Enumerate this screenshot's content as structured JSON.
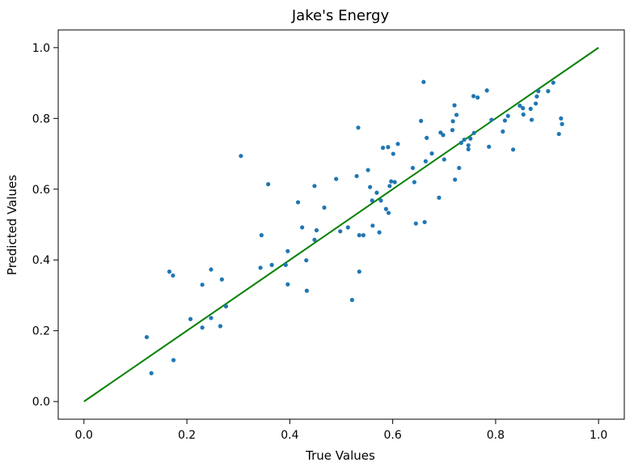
{
  "chart_data": {
    "type": "scatter",
    "title": "Jake's Energy",
    "xlabel": "True Values",
    "ylabel": "Predicted Values",
    "xlim": [
      -0.05,
      1.05
    ],
    "ylim": [
      -0.05,
      1.05
    ],
    "xticks": [
      0.0,
      0.2,
      0.4,
      0.6,
      0.8,
      1.0
    ],
    "yticks": [
      0.0,
      0.2,
      0.4,
      0.6,
      0.8,
      1.0
    ],
    "xtick_labels": [
      "0.0",
      "0.2",
      "0.4",
      "0.6",
      "0.8",
      "1.0"
    ],
    "ytick_labels": [
      "0.0",
      "0.2",
      "0.4",
      "0.6",
      "0.8",
      "1.0"
    ],
    "grid": false,
    "point_color": "#1f77b4",
    "reference_line": {
      "color": "#008000",
      "from": [
        0.0,
        0.0
      ],
      "to": [
        1.0,
        1.0
      ]
    },
    "points": [
      [
        0.122,
        0.182
      ],
      [
        0.131,
        0.08
      ],
      [
        0.166,
        0.367
      ],
      [
        0.173,
        0.356
      ],
      [
        0.174,
        0.117
      ],
      [
        0.207,
        0.233
      ],
      [
        0.23,
        0.209
      ],
      [
        0.23,
        0.33
      ],
      [
        0.247,
        0.373
      ],
      [
        0.247,
        0.236
      ],
      [
        0.265,
        0.213
      ],
      [
        0.268,
        0.345
      ],
      [
        0.276,
        0.269
      ],
      [
        0.305,
        0.694
      ],
      [
        0.343,
        0.378
      ],
      [
        0.345,
        0.47
      ],
      [
        0.358,
        0.614
      ],
      [
        0.365,
        0.386
      ],
      [
        0.392,
        0.386
      ],
      [
        0.396,
        0.425
      ],
      [
        0.396,
        0.331
      ],
      [
        0.416,
        0.563
      ],
      [
        0.424,
        0.492
      ],
      [
        0.432,
        0.399
      ],
      [
        0.433,
        0.313
      ],
      [
        0.448,
        0.609
      ],
      [
        0.448,
        0.457
      ],
      [
        0.452,
        0.484
      ],
      [
        0.467,
        0.548
      ],
      [
        0.49,
        0.629
      ],
      [
        0.498,
        0.481
      ],
      [
        0.513,
        0.492
      ],
      [
        0.521,
        0.287
      ],
      [
        0.53,
        0.637
      ],
      [
        0.533,
        0.774
      ],
      [
        0.535,
        0.47
      ],
      [
        0.535,
        0.367
      ],
      [
        0.543,
        0.47
      ],
      [
        0.552,
        0.654
      ],
      [
        0.556,
        0.606
      ],
      [
        0.56,
        0.568
      ],
      [
        0.561,
        0.497
      ],
      [
        0.569,
        0.59
      ],
      [
        0.574,
        0.478
      ],
      [
        0.577,
        0.568
      ],
      [
        0.581,
        0.717
      ],
      [
        0.587,
        0.544
      ],
      [
        0.591,
        0.719
      ],
      [
        0.592,
        0.533
      ],
      [
        0.594,
        0.609
      ],
      [
        0.597,
        0.622
      ],
      [
        0.601,
        0.7
      ],
      [
        0.604,
        0.62
      ],
      [
        0.61,
        0.728
      ],
      [
        0.639,
        0.66
      ],
      [
        0.642,
        0.62
      ],
      [
        0.645,
        0.503
      ],
      [
        0.655,
        0.793
      ],
      [
        0.66,
        0.903
      ],
      [
        0.662,
        0.507
      ],
      [
        0.664,
        0.679
      ],
      [
        0.666,
        0.745
      ],
      [
        0.676,
        0.701
      ],
      [
        0.69,
        0.576
      ],
      [
        0.693,
        0.76
      ],
      [
        0.698,
        0.753
      ],
      [
        0.7,
        0.684
      ],
      [
        0.716,
        0.767
      ],
      [
        0.717,
        0.792
      ],
      [
        0.72,
        0.837
      ],
      [
        0.721,
        0.627
      ],
      [
        0.724,
        0.81
      ],
      [
        0.729,
        0.66
      ],
      [
        0.733,
        0.731
      ],
      [
        0.739,
        0.74
      ],
      [
        0.747,
        0.724
      ],
      [
        0.747,
        0.713
      ],
      [
        0.751,
        0.743
      ],
      [
        0.757,
        0.863
      ],
      [
        0.758,
        0.759
      ],
      [
        0.765,
        0.859
      ],
      [
        0.783,
        0.879
      ],
      [
        0.787,
        0.72
      ],
      [
        0.792,
        0.796
      ],
      [
        0.814,
        0.763
      ],
      [
        0.818,
        0.794
      ],
      [
        0.824,
        0.807
      ],
      [
        0.834,
        0.712
      ],
      [
        0.847,
        0.836
      ],
      [
        0.853,
        0.829
      ],
      [
        0.854,
        0.811
      ],
      [
        0.868,
        0.827
      ],
      [
        0.87,
        0.796
      ],
      [
        0.878,
        0.842
      ],
      [
        0.88,
        0.862
      ],
      [
        0.883,
        0.877
      ],
      [
        0.902,
        0.877
      ],
      [
        0.912,
        0.901
      ],
      [
        0.923,
        0.756
      ],
      [
        0.927,
        0.8
      ],
      [
        0.929,
        0.784
      ]
    ]
  }
}
